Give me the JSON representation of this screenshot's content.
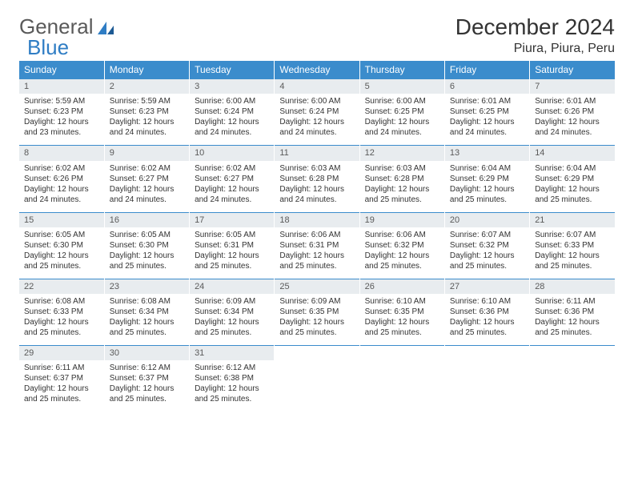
{
  "logo": {
    "part1": "General",
    "part2": "Blue"
  },
  "title": "December 2024",
  "location": "Piura, Piura, Peru",
  "colors": {
    "header_bg": "#3b8ccc",
    "header_text": "#ffffff",
    "daynum_bg": "#e8ecef",
    "border": "#3b8ccc",
    "logo_gray": "#5a5a5a",
    "logo_blue": "#2f7dc4"
  },
  "weekdays": [
    "Sunday",
    "Monday",
    "Tuesday",
    "Wednesday",
    "Thursday",
    "Friday",
    "Saturday"
  ],
  "weeks": [
    [
      {
        "n": "1",
        "sr": "Sunrise: 5:59 AM",
        "ss": "Sunset: 6:23 PM",
        "d1": "Daylight: 12 hours",
        "d2": "and 23 minutes."
      },
      {
        "n": "2",
        "sr": "Sunrise: 5:59 AM",
        "ss": "Sunset: 6:23 PM",
        "d1": "Daylight: 12 hours",
        "d2": "and 24 minutes."
      },
      {
        "n": "3",
        "sr": "Sunrise: 6:00 AM",
        "ss": "Sunset: 6:24 PM",
        "d1": "Daylight: 12 hours",
        "d2": "and 24 minutes."
      },
      {
        "n": "4",
        "sr": "Sunrise: 6:00 AM",
        "ss": "Sunset: 6:24 PM",
        "d1": "Daylight: 12 hours",
        "d2": "and 24 minutes."
      },
      {
        "n": "5",
        "sr": "Sunrise: 6:00 AM",
        "ss": "Sunset: 6:25 PM",
        "d1": "Daylight: 12 hours",
        "d2": "and 24 minutes."
      },
      {
        "n": "6",
        "sr": "Sunrise: 6:01 AM",
        "ss": "Sunset: 6:25 PM",
        "d1": "Daylight: 12 hours",
        "d2": "and 24 minutes."
      },
      {
        "n": "7",
        "sr": "Sunrise: 6:01 AM",
        "ss": "Sunset: 6:26 PM",
        "d1": "Daylight: 12 hours",
        "d2": "and 24 minutes."
      }
    ],
    [
      {
        "n": "8",
        "sr": "Sunrise: 6:02 AM",
        "ss": "Sunset: 6:26 PM",
        "d1": "Daylight: 12 hours",
        "d2": "and 24 minutes."
      },
      {
        "n": "9",
        "sr": "Sunrise: 6:02 AM",
        "ss": "Sunset: 6:27 PM",
        "d1": "Daylight: 12 hours",
        "d2": "and 24 minutes."
      },
      {
        "n": "10",
        "sr": "Sunrise: 6:02 AM",
        "ss": "Sunset: 6:27 PM",
        "d1": "Daylight: 12 hours",
        "d2": "and 24 minutes."
      },
      {
        "n": "11",
        "sr": "Sunrise: 6:03 AM",
        "ss": "Sunset: 6:28 PM",
        "d1": "Daylight: 12 hours",
        "d2": "and 24 minutes."
      },
      {
        "n": "12",
        "sr": "Sunrise: 6:03 AM",
        "ss": "Sunset: 6:28 PM",
        "d1": "Daylight: 12 hours",
        "d2": "and 25 minutes."
      },
      {
        "n": "13",
        "sr": "Sunrise: 6:04 AM",
        "ss": "Sunset: 6:29 PM",
        "d1": "Daylight: 12 hours",
        "d2": "and 25 minutes."
      },
      {
        "n": "14",
        "sr": "Sunrise: 6:04 AM",
        "ss": "Sunset: 6:29 PM",
        "d1": "Daylight: 12 hours",
        "d2": "and 25 minutes."
      }
    ],
    [
      {
        "n": "15",
        "sr": "Sunrise: 6:05 AM",
        "ss": "Sunset: 6:30 PM",
        "d1": "Daylight: 12 hours",
        "d2": "and 25 minutes."
      },
      {
        "n": "16",
        "sr": "Sunrise: 6:05 AM",
        "ss": "Sunset: 6:30 PM",
        "d1": "Daylight: 12 hours",
        "d2": "and 25 minutes."
      },
      {
        "n": "17",
        "sr": "Sunrise: 6:05 AM",
        "ss": "Sunset: 6:31 PM",
        "d1": "Daylight: 12 hours",
        "d2": "and 25 minutes."
      },
      {
        "n": "18",
        "sr": "Sunrise: 6:06 AM",
        "ss": "Sunset: 6:31 PM",
        "d1": "Daylight: 12 hours",
        "d2": "and 25 minutes."
      },
      {
        "n": "19",
        "sr": "Sunrise: 6:06 AM",
        "ss": "Sunset: 6:32 PM",
        "d1": "Daylight: 12 hours",
        "d2": "and 25 minutes."
      },
      {
        "n": "20",
        "sr": "Sunrise: 6:07 AM",
        "ss": "Sunset: 6:32 PM",
        "d1": "Daylight: 12 hours",
        "d2": "and 25 minutes."
      },
      {
        "n": "21",
        "sr": "Sunrise: 6:07 AM",
        "ss": "Sunset: 6:33 PM",
        "d1": "Daylight: 12 hours",
        "d2": "and 25 minutes."
      }
    ],
    [
      {
        "n": "22",
        "sr": "Sunrise: 6:08 AM",
        "ss": "Sunset: 6:33 PM",
        "d1": "Daylight: 12 hours",
        "d2": "and 25 minutes."
      },
      {
        "n": "23",
        "sr": "Sunrise: 6:08 AM",
        "ss": "Sunset: 6:34 PM",
        "d1": "Daylight: 12 hours",
        "d2": "and 25 minutes."
      },
      {
        "n": "24",
        "sr": "Sunrise: 6:09 AM",
        "ss": "Sunset: 6:34 PM",
        "d1": "Daylight: 12 hours",
        "d2": "and 25 minutes."
      },
      {
        "n": "25",
        "sr": "Sunrise: 6:09 AM",
        "ss": "Sunset: 6:35 PM",
        "d1": "Daylight: 12 hours",
        "d2": "and 25 minutes."
      },
      {
        "n": "26",
        "sr": "Sunrise: 6:10 AM",
        "ss": "Sunset: 6:35 PM",
        "d1": "Daylight: 12 hours",
        "d2": "and 25 minutes."
      },
      {
        "n": "27",
        "sr": "Sunrise: 6:10 AM",
        "ss": "Sunset: 6:36 PM",
        "d1": "Daylight: 12 hours",
        "d2": "and 25 minutes."
      },
      {
        "n": "28",
        "sr": "Sunrise: 6:11 AM",
        "ss": "Sunset: 6:36 PM",
        "d1": "Daylight: 12 hours",
        "d2": "and 25 minutes."
      }
    ],
    [
      {
        "n": "29",
        "sr": "Sunrise: 6:11 AM",
        "ss": "Sunset: 6:37 PM",
        "d1": "Daylight: 12 hours",
        "d2": "and 25 minutes."
      },
      {
        "n": "30",
        "sr": "Sunrise: 6:12 AM",
        "ss": "Sunset: 6:37 PM",
        "d1": "Daylight: 12 hours",
        "d2": "and 25 minutes."
      },
      {
        "n": "31",
        "sr": "Sunrise: 6:12 AM",
        "ss": "Sunset: 6:38 PM",
        "d1": "Daylight: 12 hours",
        "d2": "and 25 minutes."
      },
      {
        "empty": true
      },
      {
        "empty": true
      },
      {
        "empty": true
      },
      {
        "empty": true
      }
    ]
  ]
}
